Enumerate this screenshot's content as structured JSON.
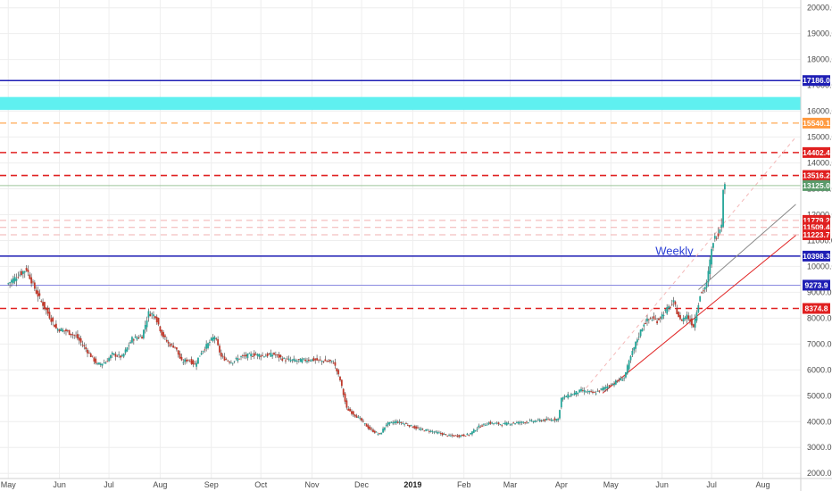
{
  "chart_data": {
    "type": "candlestick",
    "y_axis": {
      "range": [
        1800,
        20300
      ],
      "ticks": [
        2000,
        3000,
        4000,
        5000,
        6000,
        7000,
        8000,
        9000,
        10000,
        11000,
        12000,
        13000,
        14000,
        15000,
        16000,
        17000,
        18000,
        19000,
        20000
      ],
      "tick_labels": [
        "2000.0",
        "3000.0",
        "4000.0",
        "5000.0",
        "6000.0",
        "7000.0",
        "8000.0",
        "9000.0",
        "10000.0",
        "11000.0",
        "12000.0",
        "13000.0",
        "14000.0",
        "15000.0",
        "16000.0",
        "17000.0",
        "18000.0",
        "19000.0",
        "20000.0"
      ]
    },
    "x_axis": {
      "labels": [
        {
          "text": "May",
          "day": 0
        },
        {
          "text": "Jun",
          "day": 31
        },
        {
          "text": "Jul",
          "day": 61
        },
        {
          "text": "Aug",
          "day": 92
        },
        {
          "text": "Sep",
          "day": 123
        },
        {
          "text": "Oct",
          "day": 153
        },
        {
          "text": "Nov",
          "day": 184
        },
        {
          "text": "Dec",
          "day": 214
        },
        {
          "text": "2019",
          "day": 245,
          "bold": true
        },
        {
          "text": "Feb",
          "day": 276
        },
        {
          "text": "Mar",
          "day": 304
        },
        {
          "text": "Apr",
          "day": 335
        },
        {
          "text": "May",
          "day": 365
        },
        {
          "text": "Jun",
          "day": 396
        },
        {
          "text": "Jul",
          "day": 426
        },
        {
          "text": "Aug",
          "day": 457
        }
      ],
      "range": [
        -5,
        480
      ]
    },
    "price_path": [
      [
        0,
        9300
      ],
      [
        8,
        9700
      ],
      [
        12,
        9900
      ],
      [
        18,
        9000
      ],
      [
        24,
        8300
      ],
      [
        30,
        7600
      ],
      [
        36,
        7500
      ],
      [
        42,
        7300
      ],
      [
        48,
        6800
      ],
      [
        55,
        6200
      ],
      [
        60,
        6300
      ],
      [
        64,
        6600
      ],
      [
        70,
        6500
      ],
      [
        76,
        7200
      ],
      [
        82,
        7300
      ],
      [
        86,
        8200
      ],
      [
        90,
        8100
      ],
      [
        94,
        7400
      ],
      [
        98,
        7000
      ],
      [
        102,
        6900
      ],
      [
        106,
        6300
      ],
      [
        110,
        6400
      ],
      [
        114,
        6200
      ],
      [
        118,
        6700
      ],
      [
        122,
        7000
      ],
      [
        126,
        7300
      ],
      [
        130,
        6500
      ],
      [
        136,
        6300
      ],
      [
        142,
        6500
      ],
      [
        150,
        6600
      ],
      [
        156,
        6550
      ],
      [
        162,
        6600
      ],
      [
        168,
        6400
      ],
      [
        176,
        6350
      ],
      [
        184,
        6400
      ],
      [
        198,
        6300
      ],
      [
        202,
        5600
      ],
      [
        206,
        4500
      ],
      [
        210,
        4300
      ],
      [
        214,
        4100
      ],
      [
        220,
        3700
      ],
      [
        226,
        3500
      ],
      [
        230,
        3900
      ],
      [
        236,
        4000
      ],
      [
        242,
        3900
      ],
      [
        250,
        3700
      ],
      [
        256,
        3650
      ],
      [
        262,
        3550
      ],
      [
        268,
        3450
      ],
      [
        274,
        3450
      ],
      [
        280,
        3500
      ],
      [
        286,
        3800
      ],
      [
        292,
        3950
      ],
      [
        300,
        3900
      ],
      [
        308,
        3950
      ],
      [
        316,
        4000
      ],
      [
        324,
        4050
      ],
      [
        334,
        4100
      ],
      [
        336,
        4900
      ],
      [
        340,
        5000
      ],
      [
        348,
        5200
      ],
      [
        356,
        5100
      ],
      [
        362,
        5300
      ],
      [
        368,
        5500
      ],
      [
        374,
        5700
      ],
      [
        378,
        6500
      ],
      [
        382,
        7200
      ],
      [
        386,
        7800
      ],
      [
        390,
        8000
      ],
      [
        394,
        7900
      ],
      [
        398,
        8200
      ],
      [
        404,
        8600
      ],
      [
        408,
        7900
      ],
      [
        412,
        8100
      ],
      [
        416,
        7700
      ],
      [
        420,
        8900
      ],
      [
        424,
        9300
      ],
      [
        426,
        10200
      ],
      [
        428,
        11000
      ],
      [
        431,
        11300
      ],
      [
        433,
        11700
      ],
      [
        434,
        13100
      ]
    ],
    "horizontal_levels": [
      {
        "price": 17186.0,
        "label": "17186.0",
        "color": "#1f1fb5",
        "style": "solid",
        "width": 1.5
      },
      {
        "price": 15540.1,
        "label": "15540.1",
        "color": "#ffaa55",
        "style": "dashed",
        "width": 1.2
      },
      {
        "price": 14402.4,
        "label": "14402.4",
        "color": "#e02020",
        "style": "dashed",
        "width": 1.6
      },
      {
        "price": 13516.2,
        "label": "13516.2",
        "color": "#e02020",
        "style": "dashed",
        "width": 1.6
      },
      {
        "price": 13125.0,
        "label": "13125.0",
        "color": "#9cc59a",
        "style": "solid",
        "width": 1
      },
      {
        "price": 11779.2,
        "label": "11779.2",
        "color": "#f2b0b0",
        "style": "dashed",
        "width": 1
      },
      {
        "price": 11509.4,
        "label": "11509.4",
        "color": "#f2b0b0",
        "style": "dashed",
        "width": 1
      },
      {
        "price": 11223.7,
        "label": "11223.7",
        "color": "#f2b0b0",
        "style": "dashed",
        "width": 1
      },
      {
        "price": 10398.3,
        "label": "10398.3",
        "color": "#1f1fb5",
        "style": "solid",
        "width": 1.6
      },
      {
        "price": 9273.9,
        "label": "9273.9",
        "color": "#8a8ae0",
        "style": "solid",
        "width": 1
      },
      {
        "price": 8374.8,
        "label": "8374.8",
        "color": "#e02020",
        "style": "dashed",
        "width": 1.5
      }
    ],
    "price_tags": [
      {
        "label": "17186.0",
        "price": 17186.0,
        "bg": "#1f1fb5"
      },
      {
        "label": "15540.1",
        "price": 15540.1,
        "bg": "#ff9a40"
      },
      {
        "label": "14402.4",
        "price": 14402.4,
        "bg": "#e02020"
      },
      {
        "label": "13516.2",
        "price": 13516.2,
        "bg": "#e02020"
      },
      {
        "label": "13125.0",
        "price": 13125.0,
        "bg": "#5a9a6a"
      },
      {
        "label": "11779.2",
        "price": 11779.2,
        "bg": "#e02020"
      },
      {
        "label": "11509.4",
        "price": 11509.4,
        "bg": "#e02020"
      },
      {
        "label": "11223.7",
        "price": 11223.7,
        "bg": "#e02020"
      },
      {
        "label": "10398.3",
        "price": 10398.3,
        "bg": "#1f1fb5"
      },
      {
        "label": "9273.9",
        "price": 9273.9,
        "bg": "#1f1fb5"
      },
      {
        "label": "8374.8",
        "price": 8374.8,
        "bg": "#e02020"
      }
    ],
    "zone": {
      "from": 16050,
      "to": 16550,
      "color": "#5ff0f0"
    },
    "trendlines": [
      {
        "from": {
          "day": 360,
          "price": 5100
        },
        "to": {
          "day": 477,
          "price": 11200
        },
        "color": "#e02020"
      },
      {
        "from": {
          "day": 418,
          "price": 9100
        },
        "to": {
          "day": 477,
          "price": 12400
        },
        "color": "#8a8a8a"
      },
      {
        "from": {
          "day": 350,
          "price": 5300
        },
        "to": {
          "day": 477,
          "price": 15000
        },
        "color": "#f4b8b8",
        "dashed": true
      }
    ],
    "annotations": [
      {
        "text": "Weekly",
        "day": 392,
        "price": 10450
      }
    ],
    "colors": {
      "up": "#26a69a",
      "down": "#c0392b",
      "background": "#ffffff",
      "grid": "#eeeeee"
    }
  }
}
